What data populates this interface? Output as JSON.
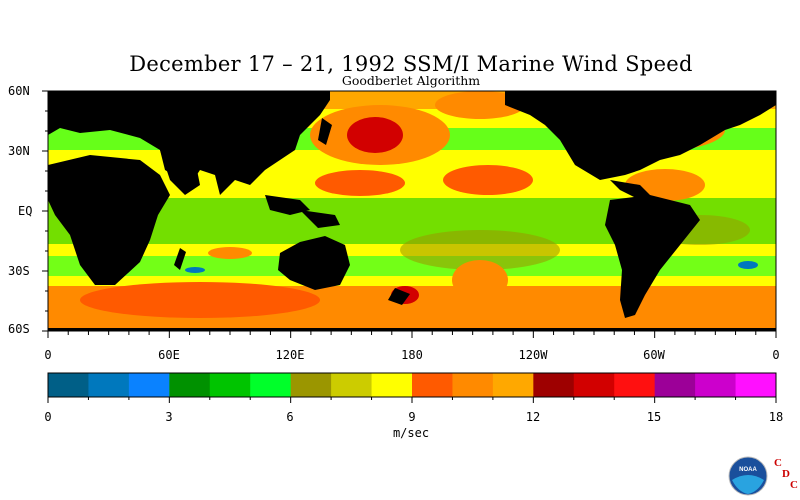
{
  "title": "December 17 – 21, 1992 SSM/I Marine Wind Speed",
  "subtitle": "Goodberlet Algorithm",
  "latitude_labels": [
    "60N",
    "30N",
    "EQ",
    "30S",
    "60S"
  ],
  "longitude_labels": [
    "0",
    "60E",
    "120E",
    "180",
    "120W",
    "60W",
    "0"
  ],
  "colorbar": {
    "tick_labels": [
      "0",
      "3",
      "6",
      "9",
      "12",
      "15",
      "18"
    ],
    "units": "m/sec",
    "colors": [
      "#005f87",
      "#0078bd",
      "#0a82ff",
      "#009100",
      "#00c400",
      "#00ff2a",
      "#9b9600",
      "#cccc00",
      "#ffff00",
      "#ff5a00",
      "#ff8a00",
      "#ffa800",
      "#9e0000",
      "#d20000",
      "#ff1010",
      "#9c0098",
      "#cc00cc",
      "#ff10ff"
    ],
    "min": 0,
    "max": 18,
    "step": 1
  },
  "logo": {
    "text": "NOAA",
    "cdc_letters": [
      "C",
      "D",
      "C"
    ]
  },
  "colors": {
    "land": "#000000",
    "background": "#ffffff"
  }
}
